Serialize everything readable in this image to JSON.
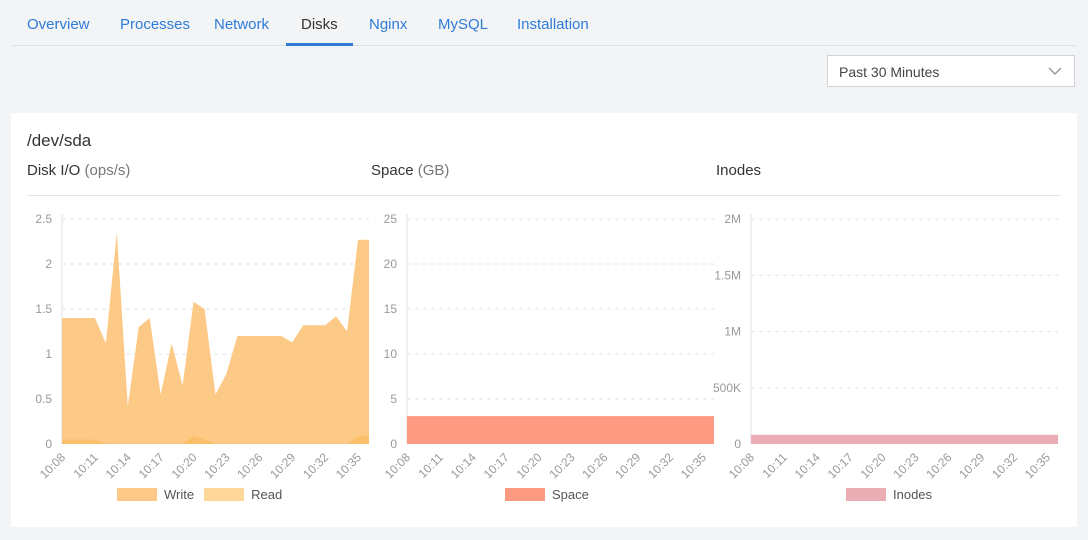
{
  "tabs": [
    {
      "label": "Overview",
      "active": false
    },
    {
      "label": "Processes",
      "active": false
    },
    {
      "label": "Network",
      "active": false
    },
    {
      "label": "Disks",
      "active": true
    },
    {
      "label": "Nginx",
      "active": false
    },
    {
      "label": "MySQL",
      "active": false
    },
    {
      "label": "Installation",
      "active": false
    }
  ],
  "time_range": {
    "selected": "Past 30 Minutes",
    "icon": "chevron-down-icon"
  },
  "device": "/dev/sda",
  "chart_data": [
    {
      "type": "area",
      "title": "Disk I/O",
      "unit": "(ops/s)",
      "x": [
        "10:08",
        "10:09",
        "10:10",
        "10:11",
        "10:12",
        "10:13",
        "10:14",
        "10:15",
        "10:16",
        "10:17",
        "10:18",
        "10:19",
        "10:20",
        "10:21",
        "10:22",
        "10:23",
        "10:24",
        "10:25",
        "10:26",
        "10:27",
        "10:28",
        "10:29",
        "10:30",
        "10:31",
        "10:32",
        "10:33",
        "10:34",
        "10:35",
        "10:36"
      ],
      "x_tick_labels": [
        "10:08",
        "10:11",
        "10:14",
        "10:17",
        "10:20",
        "10:23",
        "10:26",
        "10:29",
        "10:32",
        "10:35"
      ],
      "y_tick_labels": [
        "0",
        "0.5",
        "1",
        "1.5",
        "2",
        "2.5"
      ],
      "ylim": [
        0,
        2.5
      ],
      "grid": true,
      "legend": "bottom",
      "series": [
        {
          "name": "Write",
          "color": "#fdc986",
          "values": [
            1.4,
            1.4,
            1.4,
            1.4,
            1.12,
            2.35,
            0.42,
            1.3,
            1.4,
            0.55,
            1.12,
            0.65,
            1.58,
            1.5,
            0.55,
            0.78,
            1.2,
            1.2,
            1.2,
            1.2,
            1.2,
            1.13,
            1.32,
            1.32,
            1.32,
            1.42,
            1.25,
            2.27,
            2.27
          ]
        },
        {
          "name": "Read",
          "color": "#ffd699",
          "values": [
            0.05,
            0.05,
            0.05,
            0.05,
            0.01,
            0,
            0,
            0,
            0,
            0,
            0,
            0,
            0.09,
            0.05,
            0,
            0,
            0,
            0,
            0,
            0,
            0,
            0,
            0,
            0,
            0,
            0,
            0,
            0.09,
            0.09
          ]
        }
      ]
    },
    {
      "type": "area",
      "title": "Space",
      "unit": "(GB)",
      "x_tick_labels": [
        "10:08",
        "10:11",
        "10:14",
        "10:17",
        "10:20",
        "10:23",
        "10:26",
        "10:29",
        "10:32",
        "10:35"
      ],
      "y_tick_labels": [
        "0",
        "5",
        "10",
        "15",
        "20",
        "25"
      ],
      "ylim": [
        0,
        25
      ],
      "grid": true,
      "legend": "bottom",
      "series": [
        {
          "name": "Space",
          "color": "#fe9a82",
          "values": [
            3.1,
            3.1
          ]
        }
      ]
    },
    {
      "type": "area",
      "title": "Inodes",
      "unit": "",
      "x_tick_labels": [
        "10:08",
        "10:11",
        "10:14",
        "10:17",
        "10:20",
        "10:23",
        "10:26",
        "10:29",
        "10:32",
        "10:35"
      ],
      "y_tick_labels": [
        "0",
        "500K",
        "1M",
        "1.5M",
        "2M"
      ],
      "ylim": [
        0,
        2000000
      ],
      "grid": true,
      "legend": "bottom",
      "series": [
        {
          "name": "Inodes",
          "color": "#e9adb3",
          "values": [
            82000,
            82000
          ]
        }
      ]
    }
  ]
}
